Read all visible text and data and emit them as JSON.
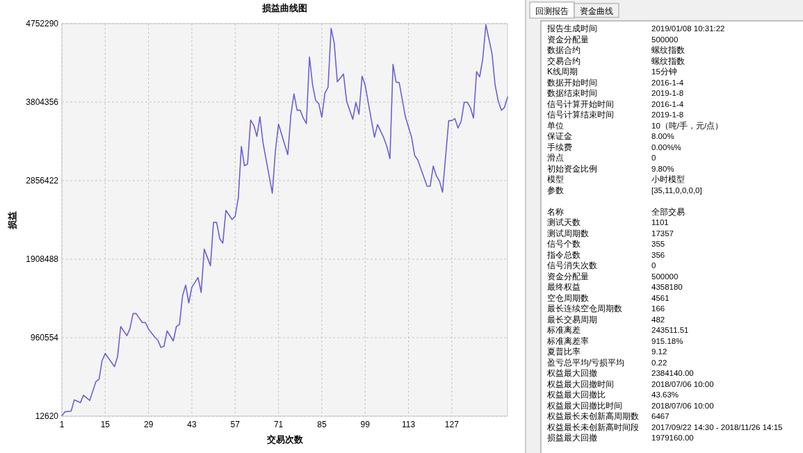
{
  "chart_data": [
    {
      "type": "line",
      "title": "损益曲线图",
      "xlabel": "交易次数",
      "ylabel": "损益",
      "x": [
        1,
        2,
        4,
        5,
        7,
        8,
        10,
        12,
        13,
        14,
        15,
        18,
        19,
        20,
        22,
        23,
        24,
        25,
        27,
        28,
        29,
        31,
        32,
        33,
        34,
        35,
        37,
        38,
        39,
        40,
        41,
        42,
        43,
        45,
        46,
        47,
        49,
        50,
        51,
        52,
        53,
        54,
        56,
        57,
        58,
        59,
        60,
        61,
        62,
        63,
        64,
        65,
        66,
        69,
        70,
        71,
        74,
        75,
        76,
        77,
        78,
        79,
        80,
        81,
        82,
        83,
        84,
        85,
        86,
        87,
        88,
        89,
        90,
        92,
        93,
        95,
        96,
        97,
        98,
        99,
        102,
        103,
        105,
        106,
        107,
        108,
        109,
        110,
        112,
        114,
        115,
        116,
        119,
        120,
        121,
        122,
        123,
        124,
        126,
        127,
        128,
        129,
        130,
        131,
        132,
        133,
        134,
        135,
        136,
        137,
        138,
        140,
        141,
        142,
        143,
        144,
        145
      ],
      "series": [
        {
          "color": "#6a60d8",
          "values": [
            19000,
            66000,
            73000,
            209000,
            177000,
            266000,
            203000,
            431000,
            456000,
            684000,
            769000,
            611000,
            731000,
            1095000,
            985000,
            1070000,
            1251000,
            1251000,
            1143000,
            1143000,
            1064000,
            969000,
            931000,
            842000,
            858000,
            1042000,
            921000,
            1095000,
            1121000,
            1466000,
            1596000,
            1380000,
            1570000,
            1687000,
            1507000,
            2029000,
            1830000,
            2352000,
            2352000,
            2156000,
            2102000,
            2498000,
            2387000,
            2425000,
            2647000,
            3270000,
            3036000,
            3058000,
            3587000,
            3527000,
            3391000,
            3628000,
            3312000,
            2704000,
            3217000,
            3540000,
            3169000,
            3650000,
            3904000,
            3707000,
            3707000,
            3612000,
            3546000,
            4350000,
            4015000,
            3825000,
            3787000,
            3622000,
            3913000,
            3983000,
            4695000,
            4521000,
            4049000,
            4144000,
            3818000,
            3597000,
            3802000,
            3660000,
            4119000,
            4008000,
            3381000,
            3533000,
            3375000,
            3270000,
            3122000,
            4261000,
            4046000,
            4040000,
            3628000,
            3381000,
            3160000,
            3106000,
            2789000,
            2789000,
            3033000,
            2916000,
            2853000,
            2717000,
            3581000,
            3581000,
            3606000,
            3492000,
            3571000,
            3802000,
            3802000,
            3739000,
            3612000,
            4173000,
            4109000,
            4325000,
            4740000,
            4388000,
            4008000,
            3818000,
            3707000,
            3739000,
            3866000
          ]
        }
      ],
      "xlim": [
        1,
        145
      ],
      "xticks": [
        1,
        15,
        29,
        43,
        57,
        71,
        85,
        99,
        113,
        127
      ],
      "ylim": [
        12620,
        4752290
      ],
      "yticks": [
        12620,
        960554,
        1908488,
        2856422,
        3804356,
        4752290
      ],
      "grid": true
    },
    {
      "type": "other",
      "annotations": [
        "回测报告",
        "资金曲线",
        "报告生成时间",
        "2019/01/08 10:31:22",
        "资金分配量",
        "500000",
        "数据合约",
        "螺纹指数",
        "交易合约",
        "螺纹指数",
        "K线周期",
        "15分钟",
        "数据开始时间",
        "2016-1-4",
        "数据结束时间",
        "2019-1-8",
        "信号计算开始时间",
        "2016-1-4",
        "信号计算结束时间",
        "2019-1-8",
        "单位",
        "10（吨/手，元/点）",
        "保证金",
        "8.00%",
        "手续费",
        "0.00%%",
        "滑点",
        "0",
        "初始资金比例",
        "9.80%",
        "模型",
        "小时模型",
        "参数",
        "[35,11,0,0,0,0]",
        "名称",
        "全部交易",
        "测试天数",
        "1101",
        "测试周期数",
        "17357",
        "信号个数",
        "355",
        "指令总数",
        "356",
        "信号消失次数",
        "0",
        "资金分配量",
        "500000",
        "最终权益",
        "4358180",
        "空仓周期数",
        "4561",
        "最长连续空仓周期数",
        "166",
        "最长交易周期",
        "482",
        "标准离差",
        "243511.51",
        "标准离差率",
        "915.18%",
        "夏普比率",
        "9.12",
        "盈亏总平均/亏损平均",
        "0.22",
        "权益最大回撤",
        "2384140.00",
        "权益最大回撤时间",
        "2018/07/06 10:00",
        "权益最大回撤比",
        "43.63%",
        "权益最大回撤比时间",
        "2018/07/06 10:00",
        "权益最长未创新高周期数",
        "6467",
        "权益最长未创新高时间段",
        "2017/09/22 14:30 - 2018/11/26 14:15",
        "损益最大回撤",
        "1979160.00"
      ]
    }
  ]
}
